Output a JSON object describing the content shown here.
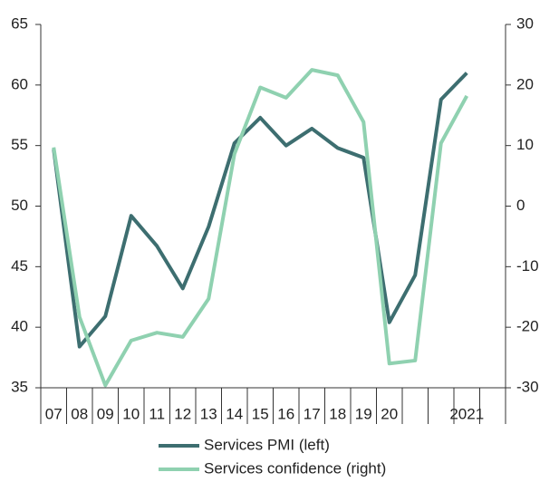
{
  "chart_data": {
    "type": "line",
    "categories": [
      "07",
      "08",
      "09",
      "10",
      "11",
      "12",
      "13",
      "14",
      "15",
      "16",
      "17",
      "18",
      "19",
      "20",
      null,
      null,
      "2021",
      null
    ],
    "series": [
      {
        "name": "Services PMI (left)",
        "color": "#3d6e70",
        "axis": "y",
        "values": [
          54.7,
          38.4,
          40.9,
          49.2,
          46.7,
          43.2,
          48.3,
          55.2,
          57.3,
          55.0,
          56.4,
          54.8,
          54.0,
          40.4,
          44.3,
          58.8,
          61.0,
          null
        ]
      },
      {
        "name": "Services confidence (right)",
        "color": "#8fd1b0",
        "axis": "y2",
        "values": [
          9.7,
          -18.3,
          -29.6,
          -22.2,
          -20.9,
          -21.6,
          -15.3,
          8.6,
          19.6,
          17.9,
          22.5,
          21.6,
          13.9,
          -26.0,
          -25.5,
          10.4,
          18.2,
          null
        ]
      }
    ],
    "ylim": [
      35,
      65
    ],
    "yticks": [
      35,
      40,
      45,
      50,
      55,
      60,
      65
    ],
    "y2lim": [
      -30,
      30
    ],
    "y2ticks": [
      -30,
      -20,
      -10,
      0,
      10,
      20,
      30
    ]
  }
}
